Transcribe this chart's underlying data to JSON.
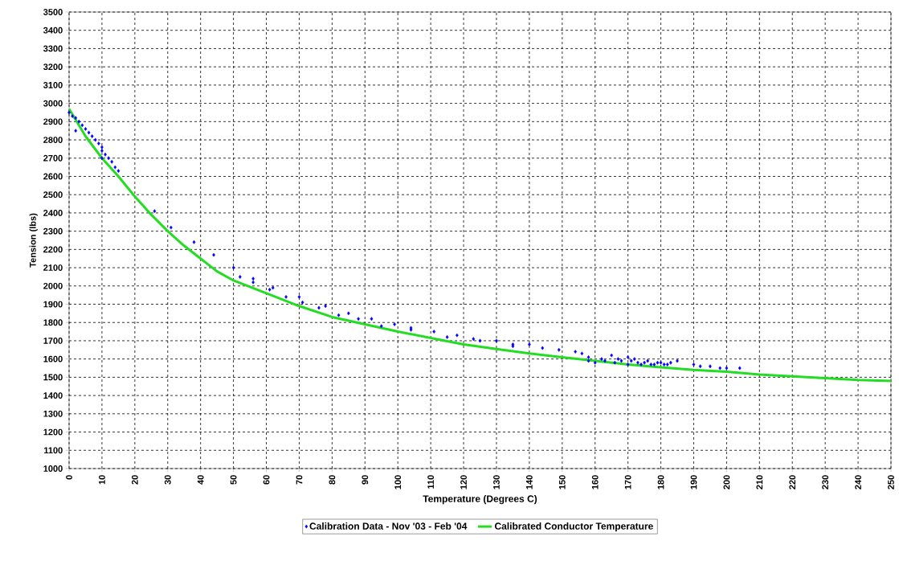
{
  "chart_data": {
    "type": "scatter",
    "xlabel": "Temperature (Degrees C)",
    "ylabel": "Tension (lbs)",
    "xlim": [
      0,
      250
    ],
    "ylim": [
      1000,
      3500
    ],
    "xticks": [
      0,
      10,
      20,
      30,
      40,
      50,
      60,
      70,
      80,
      90,
      100,
      110,
      120,
      130,
      140,
      150,
      160,
      170,
      180,
      190,
      200,
      210,
      220,
      230,
      240,
      250
    ],
    "yticks": [
      1000,
      1100,
      1200,
      1300,
      1400,
      1500,
      1600,
      1700,
      1800,
      1900,
      2000,
      2100,
      2200,
      2300,
      2400,
      2500,
      2600,
      2700,
      2800,
      2900,
      3000,
      3100,
      3200,
      3300,
      3400,
      3500
    ],
    "grid": true,
    "legend": "bottom",
    "series": [
      {
        "name": "Calibration Data - Nov '03 - Feb '04",
        "marker": "diamond",
        "color": "#0000ff",
        "x": [
          0,
          1,
          2,
          3,
          4,
          5,
          6,
          7,
          8,
          9,
          10,
          10,
          10,
          11,
          12,
          13,
          14,
          15,
          2,
          26,
          31,
          38,
          44,
          50,
          52,
          56,
          56,
          61,
          62,
          66,
          70,
          71,
          76,
          78,
          82,
          85,
          88,
          92,
          95,
          99,
          104,
          104,
          111,
          115,
          118,
          123,
          125,
          130,
          135,
          135,
          140,
          144,
          149,
          154,
          156,
          158,
          158,
          160,
          162,
          163,
          165,
          166,
          167,
          168,
          170,
          170,
          171,
          172,
          173,
          174,
          175,
          176,
          177,
          178,
          179,
          180,
          181,
          182,
          183,
          185,
          190,
          192,
          195,
          198,
          200,
          204
        ],
        "values": [
          2950,
          2930,
          2920,
          2900,
          2880,
          2860,
          2840,
          2820,
          2800,
          2780,
          2760,
          2740,
          2700,
          2720,
          2700,
          2680,
          2650,
          2630,
          2850,
          2410,
          2320,
          2240,
          2170,
          2100,
          2050,
          2040,
          2020,
          1980,
          1990,
          1940,
          1940,
          1910,
          1880,
          1890,
          1840,
          1850,
          1820,
          1820,
          1780,
          1790,
          1760,
          1770,
          1750,
          1720,
          1730,
          1710,
          1700,
          1700,
          1680,
          1670,
          1680,
          1660,
          1650,
          1640,
          1630,
          1610,
          1590,
          1580,
          1600,
          1590,
          1620,
          1580,
          1600,
          1590,
          1610,
          1570,
          1590,
          1600,
          1580,
          1570,
          1580,
          1590,
          1570,
          1570,
          1580,
          1580,
          1570,
          1570,
          1580,
          1590,
          1570,
          1560,
          1560,
          1550,
          1550,
          1550
        ]
      },
      {
        "name": "Calibrated Conductor Temperature",
        "type": "line",
        "marker": "none",
        "color": "#22dd22",
        "x": [
          0,
          5,
          10,
          15,
          20,
          25,
          30,
          35,
          40,
          45,
          50,
          60,
          70,
          80,
          90,
          100,
          110,
          120,
          130,
          140,
          150,
          160,
          170,
          180,
          190,
          200,
          210,
          220,
          230,
          240,
          250
        ],
        "values": [
          2970,
          2820,
          2700,
          2600,
          2490,
          2390,
          2300,
          2220,
          2150,
          2080,
          2030,
          1960,
          1890,
          1830,
          1790,
          1750,
          1715,
          1680,
          1655,
          1630,
          1610,
          1590,
          1570,
          1555,
          1540,
          1530,
          1515,
          1505,
          1495,
          1485,
          1480
        ]
      }
    ]
  }
}
